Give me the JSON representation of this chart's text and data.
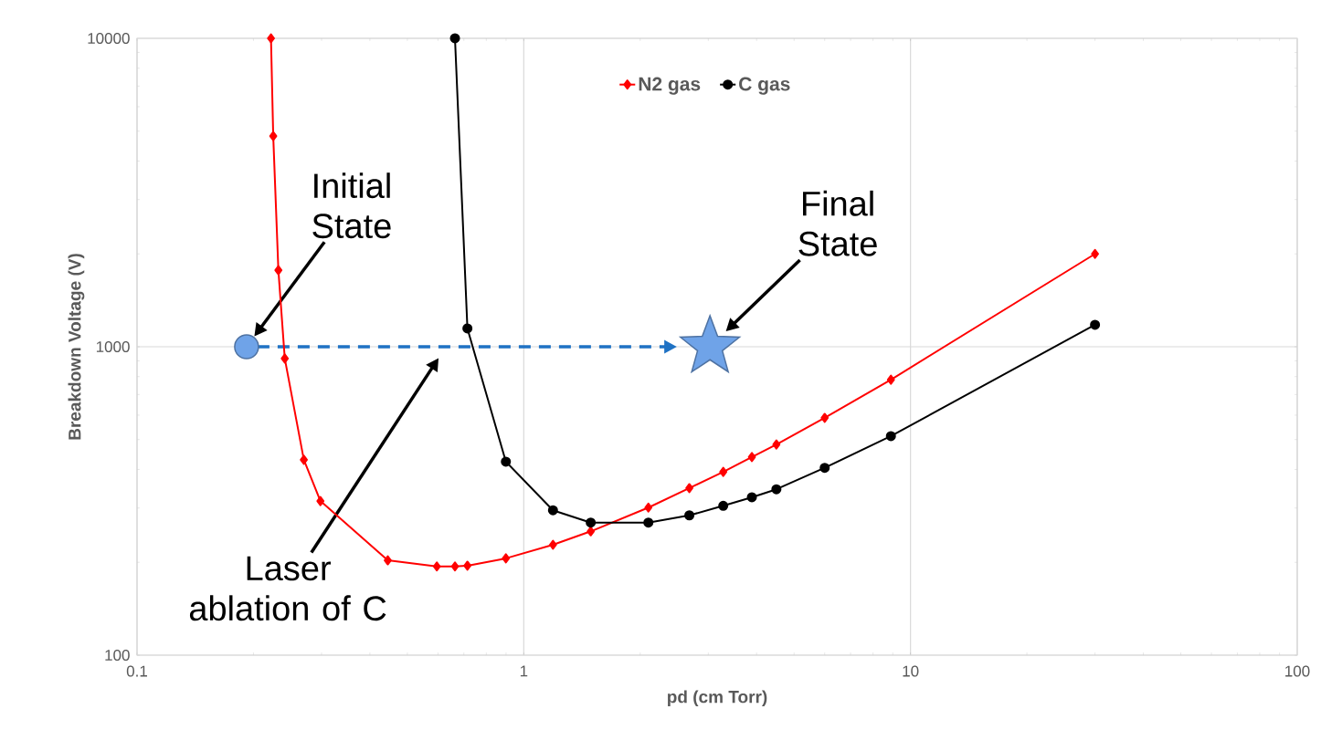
{
  "chart_data": {
    "type": "line",
    "xlabel": "pd (cm Torr)",
    "ylabel": "Breakdown Voltage (V)",
    "log": "xy",
    "xlim": [
      0.1,
      100
    ],
    "ylim": [
      100,
      10000
    ],
    "xticks": [
      0.1,
      1,
      10,
      100
    ],
    "yticks": [
      100,
      1000,
      10000
    ],
    "grid": true,
    "legend": "top",
    "series": [
      {
        "name": "N2 gas",
        "color": "#ff0000",
        "marker": "diamond",
        "x": [
          0.222,
          0.225,
          0.232,
          0.241,
          0.27,
          0.298,
          0.445,
          0.596,
          0.664,
          0.715,
          0.899,
          1.19,
          1.49,
          2.1,
          2.68,
          3.28,
          3.89,
          4.5,
          6.0,
          8.9,
          30
        ],
        "values": [
          10000,
          4820,
          1770,
          916,
          430,
          316,
          203,
          194,
          194,
          195,
          206,
          228,
          252,
          301,
          348,
          393,
          439,
          482,
          588,
          782,
          2000
        ]
      },
      {
        "name": "C gas",
        "color": "#000000",
        "marker": "circle",
        "x": [
          0.664,
          0.715,
          0.899,
          1.19,
          1.49,
          2.1,
          2.68,
          3.28,
          3.89,
          4.5,
          6.0,
          8.9,
          30
        ],
        "values": [
          10000,
          1146,
          424,
          295,
          269,
          269,
          284,
          305,
          325,
          345,
          405,
          513,
          1178
        ]
      },
      {
        "type": "scatter",
        "color": "#6fa3e8",
        "marker": "circle",
        "x": [
          0.192
        ],
        "values": [
          1000
        ]
      },
      {
        "type": "scatter",
        "color": "#6fa3e8",
        "marker": "star",
        "x": [
          3.03
        ],
        "values": [
          1000
        ]
      }
    ],
    "annotations": [
      "Initial State",
      "Final State",
      "Laser ablation of C"
    ]
  }
}
